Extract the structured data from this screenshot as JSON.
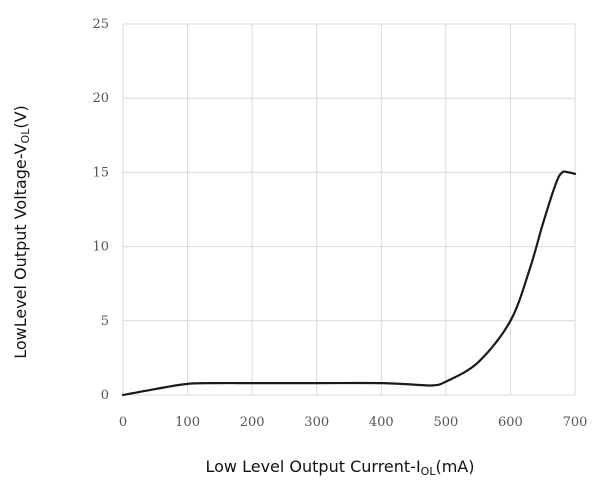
{
  "chart_data": {
    "type": "line",
    "title": "",
    "xlabel": {
      "main": "Low Level Output Current-I",
      "sub": "OL",
      "unit": "(mA)"
    },
    "ylabel": {
      "main": "LowLevel Output Voltage-V",
      "sub": "OL",
      "unit": "(V)"
    },
    "xlim": [
      0,
      700
    ],
    "ylim": [
      0,
      25
    ],
    "x_ticks": [
      0,
      100,
      200,
      300,
      400,
      500,
      600,
      700
    ],
    "y_ticks": [
      0,
      5,
      10,
      15,
      20,
      25
    ],
    "grid": true,
    "legend": "none",
    "series": [
      {
        "color": "#1a1a1a",
        "points": [
          [
            0,
            0.0
          ],
          [
            50,
            0.4
          ],
          [
            100,
            0.75
          ],
          [
            150,
            0.8
          ],
          [
            200,
            0.8
          ],
          [
            300,
            0.8
          ],
          [
            400,
            0.8
          ],
          [
            450,
            0.7
          ],
          [
            480,
            0.65
          ],
          [
            500,
            0.9
          ],
          [
            550,
            2.2
          ],
          [
            600,
            5.0
          ],
          [
            630,
            8.5
          ],
          [
            650,
            11.5
          ],
          [
            670,
            14.2
          ],
          [
            680,
            15.0
          ],
          [
            690,
            15.0
          ],
          [
            700,
            14.9
          ]
        ]
      }
    ]
  }
}
